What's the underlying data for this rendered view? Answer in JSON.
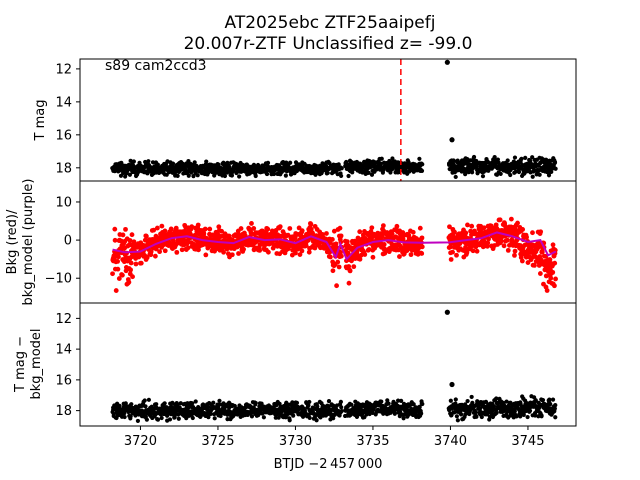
{
  "title_line1": "AT2025ebc  ZTF25aaipefj",
  "title_line2": "20.007r-ZTF Unclassified z= -99.0",
  "annotation": "s89 cam2ccd3",
  "xlabel": "BTJD −2 457 000",
  "chart_data": [
    {
      "type": "scatter",
      "name": "top-panel",
      "ylabel": "T mag",
      "xlim": [
        3716.1,
        3748.1
      ],
      "ylim": [
        18.8,
        11.4
      ],
      "inverted_y": true,
      "yticks": [
        12,
        14,
        16,
        18
      ],
      "ytick_labels": [
        "12",
        "14",
        "16",
        "18"
      ],
      "marker_vline": {
        "x": 3736.8,
        "color": "#ff0000",
        "style": "dashed"
      },
      "series": [
        {
          "color": "#000000",
          "mode": "band",
          "segments": [
            {
              "x0": 3718.2,
              "x1": 3733.0,
              "y_center": 18.05,
              "spread": 0.55
            },
            {
              "x0": 3733.2,
              "x1": 3738.2,
              "y_center": 17.95,
              "spread": 0.6
            },
            {
              "x0": 3739.9,
              "x1": 3746.8,
              "y_center": 17.9,
              "spread": 0.75
            }
          ],
          "outliers": [
            {
              "x": 3739.8,
              "y": 11.6
            },
            {
              "x": 3740.1,
              "y": 16.3
            }
          ]
        }
      ]
    },
    {
      "type": "scatter",
      "name": "middle-panel",
      "ylabel_line1": "Bkg (red)/",
      "ylabel_line2": "bkg_model (purple)",
      "xlim": [
        3716.1,
        3748.1
      ],
      "ylim": [
        -16.5,
        15.5
      ],
      "yticks": [
        10,
        0,
        -10
      ],
      "ytick_labels": [
        "10",
        "0",
        "−10"
      ],
      "series": [
        {
          "name": "Bkg",
          "color": "#ff0000",
          "mode": "scatter_band"
        },
        {
          "name": "bkg_model",
          "color": "#bf00bf",
          "mode": "line",
          "points": [
            [
              3718.2,
              -2.5
            ],
            [
              3719.0,
              -3.2
            ],
            [
              3720.0,
              -3
            ],
            [
              3721.0,
              -1
            ],
            [
              3722.0,
              0.5
            ],
            [
              3723.0,
              1
            ],
            [
              3724.0,
              0
            ],
            [
              3725.0,
              -0.5
            ],
            [
              3726.0,
              -0.8
            ],
            [
              3727.0,
              0.8
            ],
            [
              3728.0,
              0
            ],
            [
              3729.0,
              0.2
            ],
            [
              3730.0,
              -0.8
            ],
            [
              3731.0,
              1
            ],
            [
              3732.0,
              -0.5
            ],
            [
              3732.6,
              -4.5
            ],
            [
              3732.9,
              -1
            ],
            [
              3733.3,
              -5
            ],
            [
              3734.0,
              -2
            ],
            [
              3735.0,
              -0.5
            ],
            [
              3736.0,
              0
            ],
            [
              3737.0,
              -0.6
            ],
            [
              3738.2,
              -0.7
            ],
            [
              3739.9,
              -0.6
            ],
            [
              3741.0,
              0
            ],
            [
              3742.0,
              0.5
            ],
            [
              3743.0,
              2
            ],
            [
              3744.0,
              1
            ],
            [
              3745.0,
              -0.5
            ],
            [
              3745.8,
              0
            ],
            [
              3746.3,
              -4
            ],
            [
              3746.8,
              -3
            ]
          ]
        }
      ]
    },
    {
      "type": "scatter",
      "name": "bottom-panel",
      "ylabel_line1": "T mag −",
      "ylabel_line2": "bkg_model",
      "xlim": [
        3716.1,
        3748.1
      ],
      "ylim": [
        19.0,
        11.0
      ],
      "inverted_y": true,
      "yticks": [
        12,
        14,
        16,
        18
      ],
      "ytick_labels": [
        "12",
        "14",
        "16",
        "18"
      ],
      "xticks": [
        3720,
        3725,
        3730,
        3735,
        3740,
        3745
      ],
      "xtick_labels": [
        "3720",
        "3725",
        "3730",
        "3735",
        "3740",
        "3745"
      ],
      "series": [
        {
          "color": "#000000",
          "mode": "band",
          "segments": [
            {
              "x0": 3718.2,
              "x1": 3733.0,
              "y_center": 18.0,
              "spread": 0.8
            },
            {
              "x0": 3733.2,
              "x1": 3738.2,
              "y_center": 17.9,
              "spread": 0.8
            },
            {
              "x0": 3739.9,
              "x1": 3746.8,
              "y_center": 17.85,
              "spread": 0.9
            }
          ],
          "outliers": [
            {
              "x": 3739.8,
              "y": 11.6
            },
            {
              "x": 3740.1,
              "y": 16.3
            }
          ]
        }
      ]
    }
  ]
}
